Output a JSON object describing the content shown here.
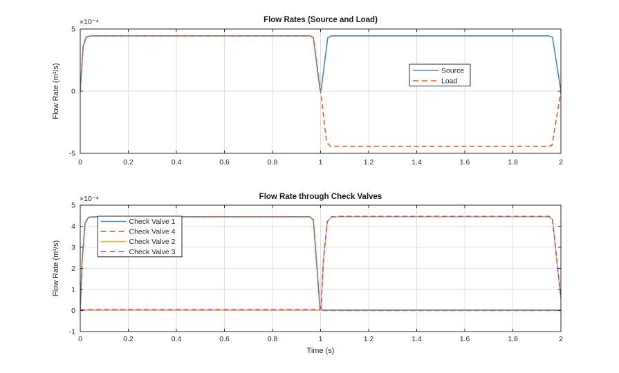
{
  "figure": {
    "background": "#ffffff",
    "axis_color": "#262626",
    "grid_color": "#e0e0e0",
    "legend_border_color": "#262626",
    "legend_fill": "#ffffff"
  },
  "chart_data": [
    {
      "type": "line",
      "title": "Flow Rates (Source and Load)",
      "xlabel": "",
      "ylabel": "Flow Rate  (m³/s)",
      "y_multiplier": "×10⁻⁴",
      "xlim": [
        0,
        2
      ],
      "ylim_e4": [
        -5,
        5
      ],
      "grid": true,
      "xticks": {
        "values": [
          0,
          0.2,
          0.4,
          0.6,
          0.8,
          1,
          1.2,
          1.4,
          1.6,
          1.8,
          2
        ],
        "labels": [
          "0",
          "0.2",
          "0.4",
          "0.6",
          "0.8",
          "1",
          "1.2",
          "1.4",
          "1.6",
          "1.8",
          "2"
        ]
      },
      "yticks": {
        "values": [
          -5,
          0,
          5
        ],
        "labels": [
          "-5",
          "0",
          "5"
        ]
      },
      "legend": {
        "position": "right-middle",
        "entries": [
          "Source",
          "Load"
        ]
      },
      "series": [
        {
          "name": "Source",
          "color": "#3f8ac9",
          "style": "solid",
          "points": [
            [
              0,
              0
            ],
            [
              0.012,
              3.6
            ],
            [
              0.025,
              4.38
            ],
            [
              0.05,
              4.45
            ],
            [
              0.955,
              4.45
            ],
            [
              0.97,
              4.3
            ],
            [
              0.998,
              0.08
            ],
            [
              1.002,
              0.08
            ],
            [
              1.03,
              4.3
            ],
            [
              1.045,
              4.45
            ],
            [
              1.95,
              4.45
            ],
            [
              1.965,
              4.34
            ],
            [
              2,
              0.02
            ]
          ]
        },
        {
          "name": "Load",
          "color": "#de5e24",
          "style": "dashed",
          "points": [
            [
              0,
              0
            ],
            [
              0.012,
              3.6
            ],
            [
              0.025,
              4.38
            ],
            [
              0.05,
              4.45
            ],
            [
              0.955,
              4.45
            ],
            [
              0.97,
              4.3
            ],
            [
              1.0,
              0
            ],
            [
              1.025,
              -4.1
            ],
            [
              1.04,
              -4.42
            ],
            [
              1.07,
              -4.45
            ],
            [
              1.95,
              -4.45
            ],
            [
              1.963,
              -4.35
            ],
            [
              2,
              -0.02
            ]
          ]
        }
      ]
    },
    {
      "type": "line",
      "title": "Flow Rate through Check Valves",
      "xlabel": "Time (s)",
      "ylabel": "Flow Rate  (m³/s)",
      "y_multiplier": "×10⁻⁴",
      "xlim": [
        0,
        2
      ],
      "ylim_e4": [
        -1,
        5
      ],
      "grid": true,
      "xticks": {
        "values": [
          0,
          0.2,
          0.4,
          0.6,
          0.8,
          1,
          1.2,
          1.4,
          1.6,
          1.8,
          2
        ],
        "labels": [
          "0",
          "0.2",
          "0.4",
          "0.6",
          "0.8",
          "1",
          "1.2",
          "1.4",
          "1.6",
          "1.8",
          "2"
        ]
      },
      "yticks": {
        "values": [
          -1,
          0,
          1,
          2,
          3,
          4,
          5
        ],
        "labels": [
          "-1",
          "0",
          "1",
          "2",
          "3",
          "4",
          "5"
        ]
      },
      "legend": {
        "position": "left-top",
        "entries": [
          "Check Valve 1",
          "Check Valve 4",
          "Check Valve 2",
          "Check Valve 3"
        ]
      },
      "series": [
        {
          "name": "Check Valve 1",
          "color": "#3f8ac9",
          "style": "solid",
          "points": [
            [
              0,
              0
            ],
            [
              0.008,
              2.4
            ],
            [
              0.02,
              4.15
            ],
            [
              0.035,
              4.43
            ],
            [
              0.07,
              4.45
            ],
            [
              0.955,
              4.45
            ],
            [
              0.97,
              4.3
            ],
            [
              0.998,
              0.06
            ],
            [
              1.005,
              0.02
            ],
            [
              2,
              0.02
            ]
          ]
        },
        {
          "name": "Check Valve 4",
          "color": "#de5e24",
          "style": "dashed",
          "points": [
            [
              0,
              0
            ],
            [
              0.008,
              2.4
            ],
            [
              0.02,
              4.15
            ],
            [
              0.035,
              4.43
            ],
            [
              0.07,
              4.45
            ],
            [
              0.955,
              4.45
            ],
            [
              0.97,
              4.3
            ],
            [
              0.998,
              0.06
            ],
            [
              1.005,
              0.0
            ],
            [
              2,
              0.0
            ]
          ]
        },
        {
          "name": "Check Valve 2",
          "color": "#efaf25",
          "style": "solid",
          "points": [
            [
              0,
              0.02
            ],
            [
              0.995,
              0.02
            ],
            [
              1.002,
              0.1
            ],
            [
              1.012,
              2.4
            ],
            [
              1.028,
              4.2
            ],
            [
              1.045,
              4.43
            ],
            [
              1.08,
              4.45
            ],
            [
              1.95,
              4.45
            ],
            [
              1.965,
              4.32
            ],
            [
              2,
              0.55
            ]
          ]
        },
        {
          "name": "Check Valve 3",
          "color": "#a04fc8",
          "style": "dashed",
          "points": [
            [
              0,
              0.04
            ],
            [
              0.995,
              0.04
            ],
            [
              1.002,
              0.12
            ],
            [
              1.012,
              2.42
            ],
            [
              1.028,
              4.22
            ],
            [
              1.045,
              4.45
            ],
            [
              1.08,
              4.47
            ],
            [
              1.95,
              4.47
            ],
            [
              1.965,
              4.34
            ],
            [
              2,
              0.57
            ]
          ]
        }
      ]
    }
  ]
}
